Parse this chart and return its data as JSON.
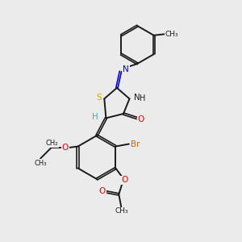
{
  "bg_color": "#ebebeb",
  "bond_color": "#1a1a1a",
  "N_color": "#0000ee",
  "S_color": "#ccaa00",
  "O_color": "#ee0000",
  "Br_color": "#cc6600",
  "H_color": "#44aaaa",
  "figsize": [
    3.0,
    3.0
  ],
  "dpi": 100,
  "xlim": [
    0,
    10
  ],
  "ylim": [
    0,
    10
  ]
}
